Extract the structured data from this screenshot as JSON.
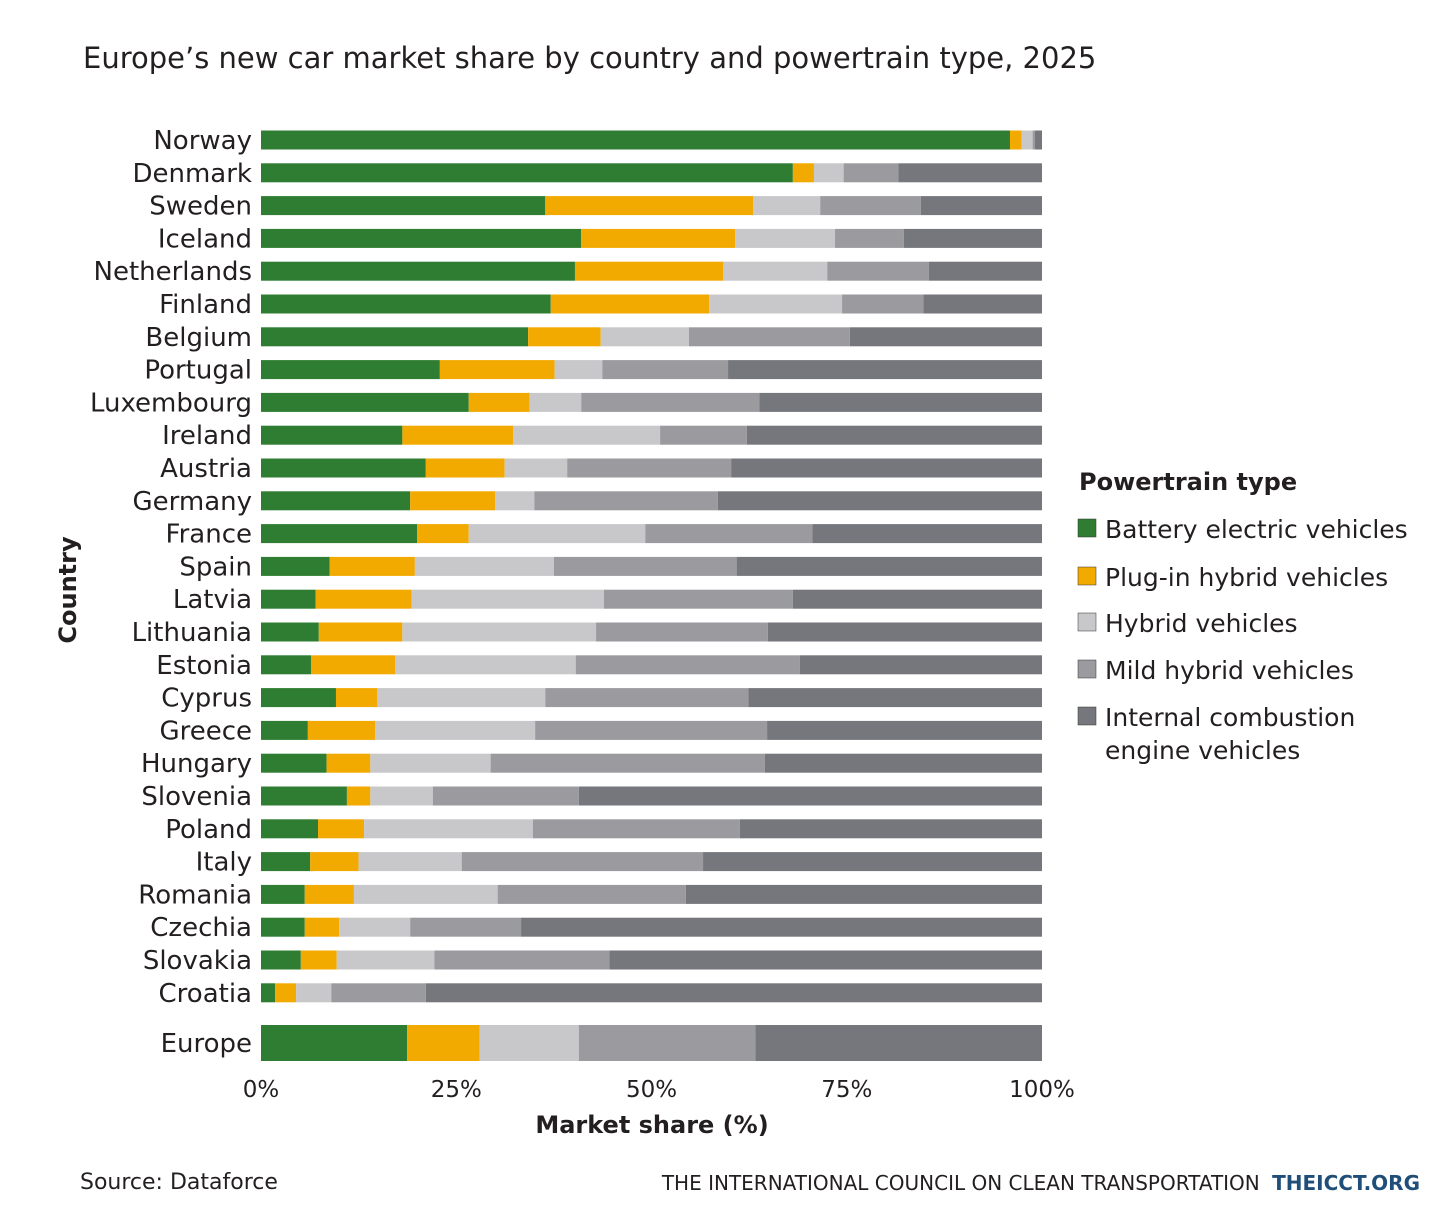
{
  "chart_data": {
    "type": "bar",
    "orientation": "horizontal",
    "stacked": true,
    "title": "Europe’s new car market share by country and powertrain type, 2025",
    "xlabel": "Market share (%)",
    "ylabel": "Country",
    "xlim": [
      0,
      100
    ],
    "xticks": [
      "0%",
      "25%",
      "50%",
      "75%",
      "100%"
    ],
    "xtick_values": [
      0,
      25,
      50,
      75,
      100
    ],
    "grid": false,
    "legend_title": "Powertrain type",
    "legend_position": "right",
    "categories": [
      "Norway",
      "Denmark",
      "Sweden",
      "Iceland",
      "Netherlands",
      "Finland",
      "Belgium",
      "Portugal",
      "Luxembourg",
      "Ireland",
      "Austria",
      "Germany",
      "France",
      "Spain",
      "Latvia",
      "Lithuania",
      "Estonia",
      "Cyprus",
      "Greece",
      "Hungary",
      "Slovenia",
      "Poland",
      "Italy",
      "Romania",
      "Czechia",
      "Slovakia",
      "Croatia",
      "Europe"
    ],
    "series": [
      {
        "name": "Battery electric vehicles",
        "color": "#2e7d32",
        "values": [
          95.9,
          68.1,
          36.4,
          41.0,
          40.2,
          37.1,
          34.2,
          22.9,
          26.6,
          18.1,
          21.1,
          19.1,
          20.0,
          8.8,
          7.0,
          7.4,
          6.4,
          9.6,
          6.0,
          8.4,
          11.0,
          7.3,
          6.3,
          5.6,
          5.6,
          5.1,
          1.8,
          18.7
        ]
      },
      {
        "name": "Plug-in hybrid vehicles",
        "color": "#f2a900",
        "values": [
          1.5,
          2.7,
          26.6,
          19.7,
          19.0,
          20.3,
          9.3,
          14.7,
          7.8,
          14.2,
          10.1,
          10.9,
          6.6,
          10.9,
          12.3,
          10.7,
          10.8,
          5.3,
          8.6,
          5.6,
          3.0,
          5.9,
          6.2,
          6.3,
          4.4,
          4.6,
          2.7,
          9.3
        ]
      },
      {
        "name": "Hybrid vehicles",
        "color": "#c8c8ca",
        "values": [
          1.4,
          3.8,
          8.6,
          12.8,
          13.3,
          17.0,
          11.3,
          6.1,
          6.6,
          18.8,
          8.0,
          5.0,
          22.6,
          17.8,
          24.6,
          24.8,
          23.1,
          21.5,
          20.5,
          15.4,
          8.0,
          21.6,
          13.2,
          18.4,
          9.1,
          12.5,
          4.5,
          12.7
        ]
      },
      {
        "name": "Mild hybrid vehicles",
        "color": "#9b9b9f",
        "values": [
          0.3,
          7.0,
          12.9,
          8.8,
          13.0,
          10.4,
          20.6,
          16.1,
          22.8,
          11.1,
          21.0,
          23.5,
          21.4,
          23.4,
          24.2,
          22.0,
          28.7,
          26.0,
          29.7,
          35.1,
          18.7,
          26.5,
          30.9,
          24.1,
          14.2,
          22.4,
          12.1,
          22.6
        ]
      },
      {
        "name": "Internal combustion engine vehicles",
        "color": "#76777d",
        "values": [
          0.9,
          18.4,
          15.5,
          17.7,
          14.5,
          15.2,
          24.6,
          40.2,
          36.2,
          37.8,
          39.8,
          41.5,
          29.4,
          39.1,
          31.9,
          35.1,
          31.0,
          37.6,
          35.2,
          35.5,
          59.3,
          38.7,
          43.4,
          45.6,
          66.7,
          55.4,
          78.9,
          36.7
        ]
      }
    ],
    "legend_lines": {
      "ice_line1": "Internal combustion",
      "ice_line2": "engine vehicles"
    }
  },
  "footer": {
    "source": "Source: Dataforce",
    "org": "THE INTERNATIONAL COUNCIL ON CLEAN TRANSPORTATION",
    "site": "THEICCT.ORG"
  }
}
